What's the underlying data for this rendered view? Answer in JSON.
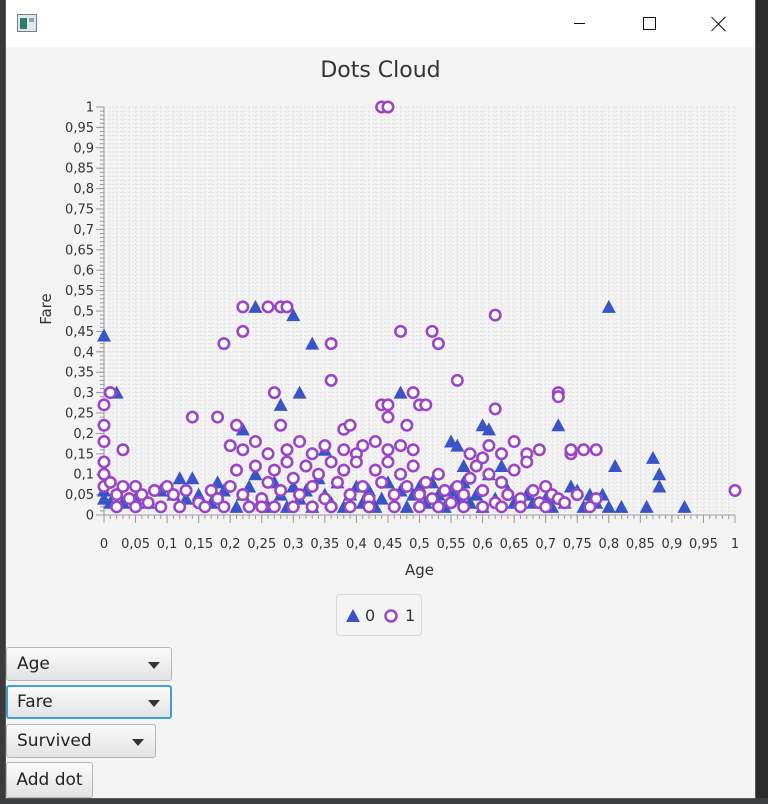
{
  "window": {
    "icons": {
      "app": "java-app-icon",
      "minimize": "minimize-icon",
      "maximize": "maximize-icon",
      "close": "close-icon"
    }
  },
  "chart_data": {
    "type": "scatter",
    "title": "Dots Cloud",
    "xlabel": "Age",
    "ylabel": "Fare",
    "xlim": [
      0,
      1
    ],
    "ylim": [
      0,
      1
    ],
    "xticks": [
      "0",
      "0,05",
      "0,1",
      "0,15",
      "0,2",
      "0,25",
      "0,3",
      "0,35",
      "0,4",
      "0,45",
      "0,5",
      "0,55",
      "0,6",
      "0,65",
      "0,7",
      "0,75",
      "0,8",
      "0,85",
      "0,9",
      "0,95",
      "1"
    ],
    "yticks": [
      "0",
      "0,05",
      "0,1",
      "0,15",
      "0,2",
      "0,25",
      "0,3",
      "0,35",
      "0,4",
      "0,45",
      "0,5",
      "0,55",
      "0,6",
      "0,65",
      "0,7",
      "0,75",
      "0,8",
      "0,85",
      "0,9",
      "0,95",
      "1"
    ],
    "grid": true,
    "legend": "bottom-center",
    "series": [
      {
        "name": "0",
        "marker": "triangle",
        "color": "#3a54c8",
        "points": [
          [
            0.0,
            0.44
          ],
          [
            0.02,
            0.3
          ],
          [
            0.24,
            0.51
          ],
          [
            0.28,
            0.27
          ],
          [
            0.3,
            0.49
          ],
          [
            0.31,
            0.3
          ],
          [
            0.33,
            0.42
          ],
          [
            0.47,
            0.3
          ],
          [
            0.8,
            0.51
          ],
          [
            0.22,
            0.21
          ],
          [
            0.35,
            0.16
          ],
          [
            0.55,
            0.18
          ],
          [
            0.56,
            0.17
          ],
          [
            0.57,
            0.12
          ],
          [
            0.6,
            0.22
          ],
          [
            0.61,
            0.21
          ],
          [
            0.61,
            0.1
          ],
          [
            0.63,
            0.12
          ],
          [
            0.72,
            0.22
          ],
          [
            0.74,
            0.07
          ],
          [
            0.75,
            0.06
          ],
          [
            0.77,
            0.05
          ],
          [
            0.79,
            0.05
          ],
          [
            0.81,
            0.12
          ],
          [
            0.87,
            0.14
          ],
          [
            0.88,
            0.1
          ],
          [
            0.88,
            0.07
          ],
          [
            0.92,
            0.02
          ],
          [
            0.0,
            0.06
          ],
          [
            0.0,
            0.04
          ],
          [
            0.0,
            0.11
          ],
          [
            0.01,
            0.03
          ],
          [
            0.03,
            0.03
          ],
          [
            0.05,
            0.04
          ],
          [
            0.07,
            0.03
          ],
          [
            0.09,
            0.06
          ],
          [
            0.1,
            0.07
          ],
          [
            0.11,
            0.05
          ],
          [
            0.12,
            0.09
          ],
          [
            0.13,
            0.04
          ],
          [
            0.14,
            0.09
          ],
          [
            0.15,
            0.05
          ],
          [
            0.17,
            0.03
          ],
          [
            0.18,
            0.08
          ],
          [
            0.19,
            0.06
          ],
          [
            0.21,
            0.02
          ],
          [
            0.22,
            0.05
          ],
          [
            0.23,
            0.07
          ],
          [
            0.24,
            0.1
          ],
          [
            0.25,
            0.04
          ],
          [
            0.26,
            0.02
          ],
          [
            0.27,
            0.08
          ],
          [
            0.28,
            0.05
          ],
          [
            0.29,
            0.02
          ],
          [
            0.3,
            0.07
          ],
          [
            0.31,
            0.04
          ],
          [
            0.32,
            0.06
          ],
          [
            0.33,
            0.02
          ],
          [
            0.34,
            0.09
          ],
          [
            0.35,
            0.05
          ],
          [
            0.36,
            0.03
          ],
          [
            0.37,
            0.08
          ],
          [
            0.38,
            0.02
          ],
          [
            0.39,
            0.05
          ],
          [
            0.4,
            0.07
          ],
          [
            0.41,
            0.03
          ],
          [
            0.42,
            0.06
          ],
          [
            0.43,
            0.02
          ],
          [
            0.44,
            0.04
          ],
          [
            0.45,
            0.08
          ],
          [
            0.46,
            0.03
          ],
          [
            0.47,
            0.06
          ],
          [
            0.48,
            0.02
          ],
          [
            0.49,
            0.05
          ],
          [
            0.5,
            0.07
          ],
          [
            0.51,
            0.03
          ],
          [
            0.52,
            0.08
          ],
          [
            0.53,
            0.05
          ],
          [
            0.54,
            0.02
          ],
          [
            0.55,
            0.06
          ],
          [
            0.56,
            0.04
          ],
          [
            0.57,
            0.08
          ],
          [
            0.58,
            0.03
          ],
          [
            0.59,
            0.05
          ],
          [
            0.6,
            0.02
          ],
          [
            0.62,
            0.04
          ],
          [
            0.64,
            0.06
          ],
          [
            0.65,
            0.03
          ],
          [
            0.67,
            0.05
          ],
          [
            0.68,
            0.03
          ],
          [
            0.7,
            0.04
          ],
          [
            0.71,
            0.02
          ],
          [
            0.73,
            0.03
          ],
          [
            0.76,
            0.02
          ],
          [
            0.78,
            0.03
          ],
          [
            0.8,
            0.02
          ],
          [
            0.82,
            0.02
          ],
          [
            0.86,
            0.02
          ]
        ]
      },
      {
        "name": "1",
        "marker": "circle",
        "color": "#9b45c8",
        "points": [
          [
            0.44,
            1.0
          ],
          [
            0.45,
            1.0
          ],
          [
            0.22,
            0.51
          ],
          [
            0.26,
            0.51
          ],
          [
            0.28,
            0.51
          ],
          [
            0.29,
            0.51
          ],
          [
            0.62,
            0.49
          ],
          [
            0.19,
            0.42
          ],
          [
            0.36,
            0.42
          ],
          [
            0.22,
            0.45
          ],
          [
            0.47,
            0.45
          ],
          [
            0.52,
            0.45
          ],
          [
            0.53,
            0.42
          ],
          [
            0.36,
            0.33
          ],
          [
            0.56,
            0.33
          ],
          [
            0.01,
            0.3
          ],
          [
            0.27,
            0.3
          ],
          [
            0.49,
            0.3
          ],
          [
            0.72,
            0.3
          ],
          [
            0.72,
            0.29
          ],
          [
            0.0,
            0.27
          ],
          [
            0.44,
            0.27
          ],
          [
            0.45,
            0.27
          ],
          [
            0.5,
            0.27
          ],
          [
            0.51,
            0.27
          ],
          [
            0.62,
            0.26
          ],
          [
            0.14,
            0.24
          ],
          [
            0.18,
            0.24
          ],
          [
            0.45,
            0.24
          ],
          [
            0.0,
            0.22
          ],
          [
            0.21,
            0.22
          ],
          [
            0.28,
            0.22
          ],
          [
            0.38,
            0.21
          ],
          [
            0.39,
            0.22
          ],
          [
            0.48,
            0.22
          ],
          [
            0.0,
            0.18
          ],
          [
            0.03,
            0.16
          ],
          [
            0.2,
            0.17
          ],
          [
            0.22,
            0.16
          ],
          [
            0.24,
            0.18
          ],
          [
            0.26,
            0.15
          ],
          [
            0.29,
            0.16
          ],
          [
            0.31,
            0.18
          ],
          [
            0.33,
            0.15
          ],
          [
            0.35,
            0.17
          ],
          [
            0.38,
            0.16
          ],
          [
            0.4,
            0.15
          ],
          [
            0.41,
            0.17
          ],
          [
            0.43,
            0.18
          ],
          [
            0.45,
            0.16
          ],
          [
            0.47,
            0.17
          ],
          [
            0.49,
            0.16
          ],
          [
            0.58,
            0.15
          ],
          [
            0.6,
            0.14
          ],
          [
            0.61,
            0.17
          ],
          [
            0.63,
            0.15
          ],
          [
            0.65,
            0.18
          ],
          [
            0.67,
            0.15
          ],
          [
            0.69,
            0.16
          ],
          [
            0.74,
            0.15
          ],
          [
            0.74,
            0.16
          ],
          [
            0.76,
            0.16
          ],
          [
            0.78,
            0.16
          ],
          [
            0.0,
            0.13
          ],
          [
            0.0,
            0.1
          ],
          [
            0.0,
            0.07
          ],
          [
            0.01,
            0.08
          ],
          [
            0.02,
            0.05
          ],
          [
            0.03,
            0.07
          ],
          [
            0.04,
            0.04
          ],
          [
            0.05,
            0.07
          ],
          [
            0.06,
            0.05
          ],
          [
            0.07,
            0.03
          ],
          [
            0.08,
            0.06
          ],
          [
            0.1,
            0.07
          ],
          [
            0.11,
            0.05
          ],
          [
            0.13,
            0.06
          ],
          [
            0.15,
            0.03
          ],
          [
            0.17,
            0.06
          ],
          [
            0.18,
            0.04
          ],
          [
            0.2,
            0.07
          ],
          [
            0.21,
            0.11
          ],
          [
            0.22,
            0.05
          ],
          [
            0.24,
            0.12
          ],
          [
            0.25,
            0.04
          ],
          [
            0.26,
            0.08
          ],
          [
            0.27,
            0.11
          ],
          [
            0.28,
            0.06
          ],
          [
            0.29,
            0.13
          ],
          [
            0.3,
            0.09
          ],
          [
            0.31,
            0.05
          ],
          [
            0.32,
            0.12
          ],
          [
            0.33,
            0.07
          ],
          [
            0.34,
            0.1
          ],
          [
            0.35,
            0.04
          ],
          [
            0.36,
            0.13
          ],
          [
            0.37,
            0.08
          ],
          [
            0.38,
            0.11
          ],
          [
            0.39,
            0.05
          ],
          [
            0.4,
            0.13
          ],
          [
            0.41,
            0.07
          ],
          [
            0.42,
            0.04
          ],
          [
            0.43,
            0.11
          ],
          [
            0.44,
            0.08
          ],
          [
            0.45,
            0.13
          ],
          [
            0.46,
            0.05
          ],
          [
            0.47,
            0.1
          ],
          [
            0.48,
            0.07
          ],
          [
            0.49,
            0.12
          ],
          [
            0.5,
            0.05
          ],
          [
            0.51,
            0.08
          ],
          [
            0.52,
            0.04
          ],
          [
            0.53,
            0.1
          ],
          [
            0.54,
            0.06
          ],
          [
            0.55,
            0.03
          ],
          [
            0.56,
            0.07
          ],
          [
            0.57,
            0.05
          ],
          [
            0.58,
            0.09
          ],
          [
            0.59,
            0.12
          ],
          [
            0.6,
            0.06
          ],
          [
            0.61,
            0.1
          ],
          [
            0.62,
            0.03
          ],
          [
            0.63,
            0.08
          ],
          [
            0.64,
            0.05
          ],
          [
            0.65,
            0.11
          ],
          [
            0.66,
            0.04
          ],
          [
            0.67,
            0.13
          ],
          [
            0.68,
            0.06
          ],
          [
            0.69,
            0.03
          ],
          [
            0.7,
            0.07
          ],
          [
            0.71,
            0.05
          ],
          [
            0.72,
            0.04
          ],
          [
            0.73,
            0.03
          ],
          [
            0.75,
            0.05
          ],
          [
            0.77,
            0.02
          ],
          [
            0.78,
            0.04
          ],
          [
            1.0,
            0.06
          ],
          [
            0.02,
            0.02
          ],
          [
            0.05,
            0.02
          ],
          [
            0.09,
            0.02
          ],
          [
            0.12,
            0.02
          ],
          [
            0.16,
            0.02
          ],
          [
            0.19,
            0.02
          ],
          [
            0.23,
            0.02
          ],
          [
            0.25,
            0.02
          ],
          [
            0.27,
            0.02
          ],
          [
            0.3,
            0.02
          ],
          [
            0.33,
            0.02
          ],
          [
            0.36,
            0.02
          ],
          [
            0.39,
            0.02
          ],
          [
            0.42,
            0.02
          ],
          [
            0.46,
            0.02
          ],
          [
            0.5,
            0.02
          ],
          [
            0.53,
            0.02
          ],
          [
            0.57,
            0.02
          ],
          [
            0.6,
            0.02
          ],
          [
            0.63,
            0.02
          ],
          [
            0.66,
            0.02
          ],
          [
            0.7,
            0.02
          ]
        ]
      }
    ]
  },
  "legend": {
    "items": [
      {
        "label": "0",
        "icon": "triangle-icon"
      },
      {
        "label": "1",
        "icon": "circle-icon"
      }
    ]
  },
  "controls": {
    "x_select": {
      "value": "Age"
    },
    "y_select": {
      "value": "Fare"
    },
    "class_select": {
      "value": "Survived"
    },
    "add_button": {
      "label": "Add dot"
    }
  }
}
